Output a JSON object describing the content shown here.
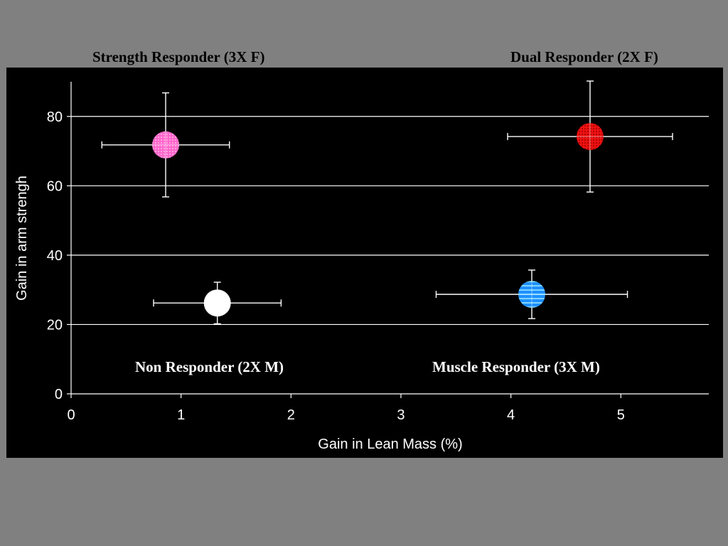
{
  "chart_data": {
    "type": "scatter",
    "xlabel": "Gain in Lean Mass (%)",
    "ylabel": "Gain in arm strengh",
    "xlim": [
      0,
      5.8
    ],
    "ylim": [
      0,
      90
    ],
    "x_ticks": [
      "0",
      "1",
      "2",
      "3",
      "4",
      "5"
    ],
    "y_ticks": [
      "0",
      "20",
      "40",
      "60",
      "80"
    ],
    "grid": "horizontal",
    "points": [
      {
        "label": "Strength Responder (3X F)",
        "x": 0.86,
        "y": 71.8,
        "x_err": [
          0.58,
          0.58
        ],
        "y_err": [
          15,
          15
        ],
        "color": "#ff66cc",
        "pattern": "dots"
      },
      {
        "label": "Dual Responder (2X F)",
        "x": 4.72,
        "y": 74.2,
        "x_err": [
          0.75,
          0.75
        ],
        "y_err": [
          16,
          16
        ],
        "color": "#ee1111",
        "pattern": "dots"
      },
      {
        "label": "Non Responder (2X M)",
        "x": 1.33,
        "y": 26.2,
        "x_err": [
          0.58,
          0.58
        ],
        "y_err": [
          6,
          6
        ],
        "color": "#ffffff",
        "pattern": "solid"
      },
      {
        "label": "Muscle Responder (3X M)",
        "x": 4.19,
        "y": 28.7,
        "x_err": [
          0.87,
          0.87
        ],
        "y_err": [
          7,
          7
        ],
        "color": "#1e90ff",
        "pattern": "stripes"
      }
    ]
  }
}
